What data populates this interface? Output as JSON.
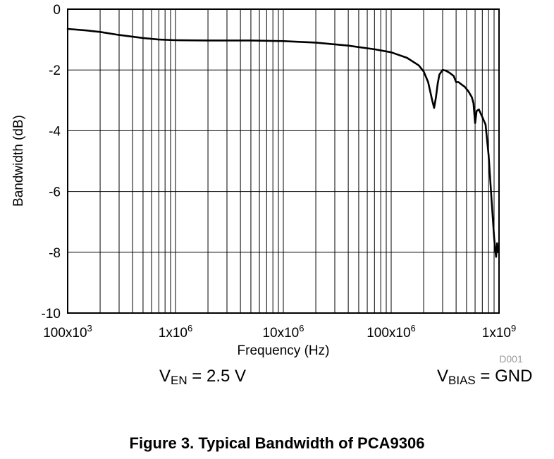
{
  "chart_data": {
    "type": "line",
    "title": "",
    "xlabel": "Frequency (Hz)",
    "ylabel": "Bandwidth (dB)",
    "xscale": "log",
    "xlim": [
      100000,
      1000000000
    ],
    "ylim": [
      -10,
      0
    ],
    "grid": true,
    "x_ticks": [
      {
        "value": 100000,
        "base": "100x10",
        "exp": "3"
      },
      {
        "value": 1000000,
        "base": "1x10",
        "exp": "6"
      },
      {
        "value": 10000000,
        "base": "10x10",
        "exp": "6"
      },
      {
        "value": 100000000,
        "base": "100x10",
        "exp": "6"
      },
      {
        "value": 1000000000,
        "base": "1x10",
        "exp": "9"
      }
    ],
    "y_ticks": [
      {
        "value": 0,
        "label": "0"
      },
      {
        "value": -2,
        "label": "-2"
      },
      {
        "value": -4,
        "label": "-4"
      },
      {
        "value": -6,
        "label": "-6"
      },
      {
        "value": -8,
        "label": "-8"
      },
      {
        "value": -10,
        "label": "-10"
      }
    ],
    "series": [
      {
        "color": "#000000",
        "x": [
          100000,
          150000,
          200000,
          300000,
          500000,
          700000,
          1000000,
          2000000,
          5000000,
          10000000,
          20000000,
          40000000,
          70000000,
          100000000,
          140000000,
          180000000,
          200000000,
          220000000,
          240000000,
          250000000,
          260000000,
          270000000,
          280000000,
          300000000,
          320000000,
          350000000,
          380000000,
          400000000,
          420000000,
          450000000,
          480000000,
          520000000,
          560000000,
          580000000,
          600000000,
          620000000,
          650000000,
          700000000,
          750000000,
          800000000,
          850000000,
          900000000,
          920000000,
          940000000,
          960000000,
          980000000
        ],
        "y": [
          -0.65,
          -0.7,
          -0.75,
          -0.85,
          -0.95,
          -1.0,
          -1.02,
          -1.03,
          -1.03,
          -1.05,
          -1.1,
          -1.2,
          -1.32,
          -1.42,
          -1.6,
          -1.85,
          -2.05,
          -2.4,
          -3.0,
          -3.25,
          -2.9,
          -2.45,
          -2.15,
          -2.0,
          -2.02,
          -2.1,
          -2.2,
          -2.4,
          -2.4,
          -2.48,
          -2.55,
          -2.7,
          -2.9,
          -3.1,
          -3.75,
          -3.35,
          -3.3,
          -3.55,
          -3.8,
          -4.8,
          -6.2,
          -7.5,
          -7.9,
          -8.15,
          -7.7,
          -8.0
        ]
      }
    ]
  },
  "code_label": "D001",
  "conditions": {
    "left_prefix": "V",
    "left_sub": "EN",
    "left_value": " = 2.5 V",
    "right_prefix": "V",
    "right_sub": "BIAS",
    "right_value": " = GND"
  },
  "caption": "Figure 3. Typical Bandwidth of PCA9306"
}
